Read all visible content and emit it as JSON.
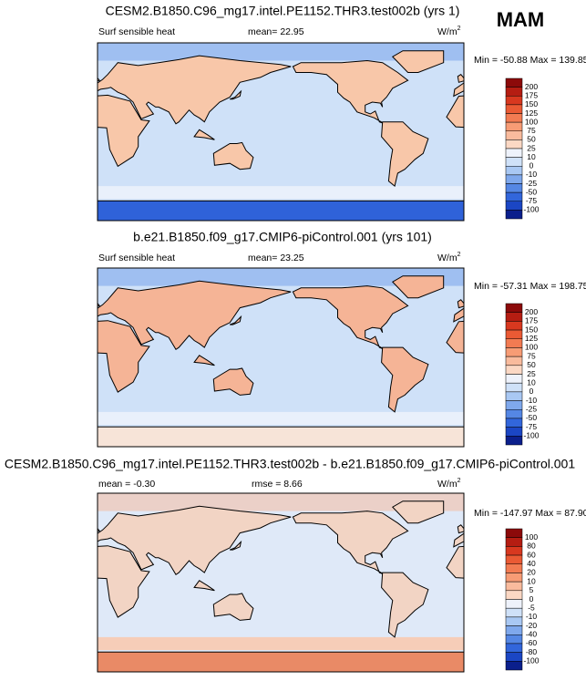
{
  "season": "MAM",
  "panels": [
    {
      "title": "CESM2.B1850.C96_mg17.intel.PE1152.THR3.test002b (yrs 1)",
      "left": "Surf sensible heat",
      "center": "mean=  22.95",
      "units": {
        "base": "W/m",
        "exponent": "2"
      },
      "minmax": "Min = -50.88 Max = 139.85",
      "colorbar": {
        "labels": [
          "200",
          "175",
          "150",
          "125",
          "100",
          "75",
          "50",
          "25",
          "10",
          "0",
          "-10",
          "-25",
          "-50",
          "-75",
          "-100"
        ],
        "colors": [
          "#8c0a0a",
          "#b51d12",
          "#d8381f",
          "#ea5a34",
          "#f27b52",
          "#f79c75",
          "#f9bb9d",
          "#fbd8c4",
          "#eef2fb",
          "#cfe1f8",
          "#a9c8f3",
          "#7fa8ec",
          "#5587e4",
          "#3266db",
          "#1b46c4",
          "#0b1f8c"
        ]
      }
    },
    {
      "title": "b.e21.B1850.f09_g17.CMIP6-piControl.001 (yrs 101)",
      "left": "Surf sensible heat",
      "center": "mean=  23.25",
      "units": {
        "base": "W/m",
        "exponent": "2"
      },
      "minmax": "Min = -57.31 Max = 198.75",
      "colorbar": {
        "labels": [
          "200",
          "175",
          "150",
          "125",
          "100",
          "75",
          "50",
          "25",
          "10",
          "0",
          "-10",
          "-25",
          "-50",
          "-75",
          "-100"
        ],
        "colors": [
          "#8c0a0a",
          "#b51d12",
          "#d8381f",
          "#ea5a34",
          "#f27b52",
          "#f79c75",
          "#f9bb9d",
          "#fbd8c4",
          "#eef2fb",
          "#cfe1f8",
          "#a9c8f3",
          "#7fa8ec",
          "#5587e4",
          "#3266db",
          "#1b46c4",
          "#0b1f8c"
        ]
      }
    },
    {
      "title": "CESM2.B1850.C96_mg17.intel.PE1152.THR3.test002b - b.e21.B1850.f09_g17.CMIP6-piControl.001",
      "left": "mean =  -0.30",
      "center": "rmse =   8.66",
      "units": {
        "base": "W/m",
        "exponent": "2"
      },
      "minmax": "Min = -147.97 Max = 87.90",
      "colorbar": {
        "labels": [
          "100",
          "80",
          "60",
          "40",
          "20",
          "10",
          "5",
          "0",
          "-5",
          "-10",
          "-20",
          "-40",
          "-60",
          "-80",
          "-100"
        ],
        "colors": [
          "#8c0a0a",
          "#b51d12",
          "#d8381f",
          "#ea5a34",
          "#f27b52",
          "#f79c75",
          "#f9bb9d",
          "#fbd8c4",
          "#eef2fb",
          "#cfe1f8",
          "#a9c8f3",
          "#7fa8ec",
          "#5587e4",
          "#3266db",
          "#1b46c4",
          "#0b1f8c"
        ]
      }
    }
  ]
}
